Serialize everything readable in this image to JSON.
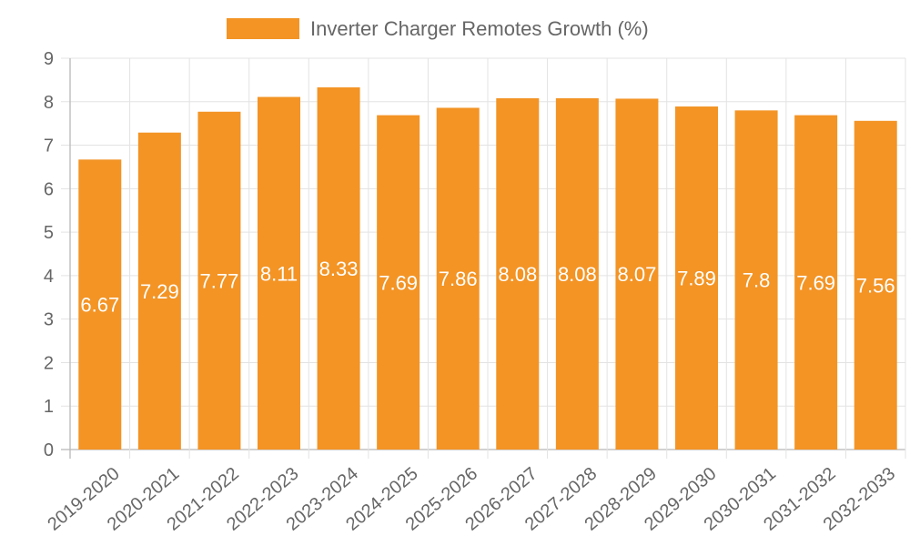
{
  "chart_data": {
    "type": "bar",
    "title": "",
    "xlabel": "",
    "ylabel": "",
    "categories": [
      "2019-2020",
      "2020-2021",
      "2021-2022",
      "2022-2023",
      "2023-2024",
      "2024-2025",
      "2025-2026",
      "2026-2027",
      "2027-2028",
      "2028-2029",
      "2029-2030",
      "2030-2031",
      "2031-2032",
      "2032-2033"
    ],
    "series": [
      {
        "name": "Inverter Charger Remotes Growth (%)",
        "values": [
          6.67,
          7.29,
          7.77,
          8.11,
          8.33,
          7.69,
          7.86,
          8.08,
          8.08,
          8.07,
          7.89,
          7.8,
          7.69,
          7.56
        ],
        "data_labels": [
          "6.67",
          "7.29",
          "7.77",
          "8.11",
          "8.33",
          "7.69",
          "7.86",
          "8.08",
          "8.08",
          "8.07",
          "7.89",
          "7.8",
          "7.69",
          "7.56"
        ],
        "color": "#f39425"
      }
    ],
    "ylim": [
      0,
      9
    ],
    "yticks": [
      "0",
      "1",
      "2",
      "3",
      "4",
      "5",
      "6",
      "7",
      "8",
      "9"
    ],
    "grid": true,
    "legend": "top-center",
    "colors": {
      "bar": "#f39425",
      "grid": "#e3e3e3",
      "axis": "#b8b8b8",
      "text": "#666666",
      "data_label": "#ffffff"
    }
  }
}
